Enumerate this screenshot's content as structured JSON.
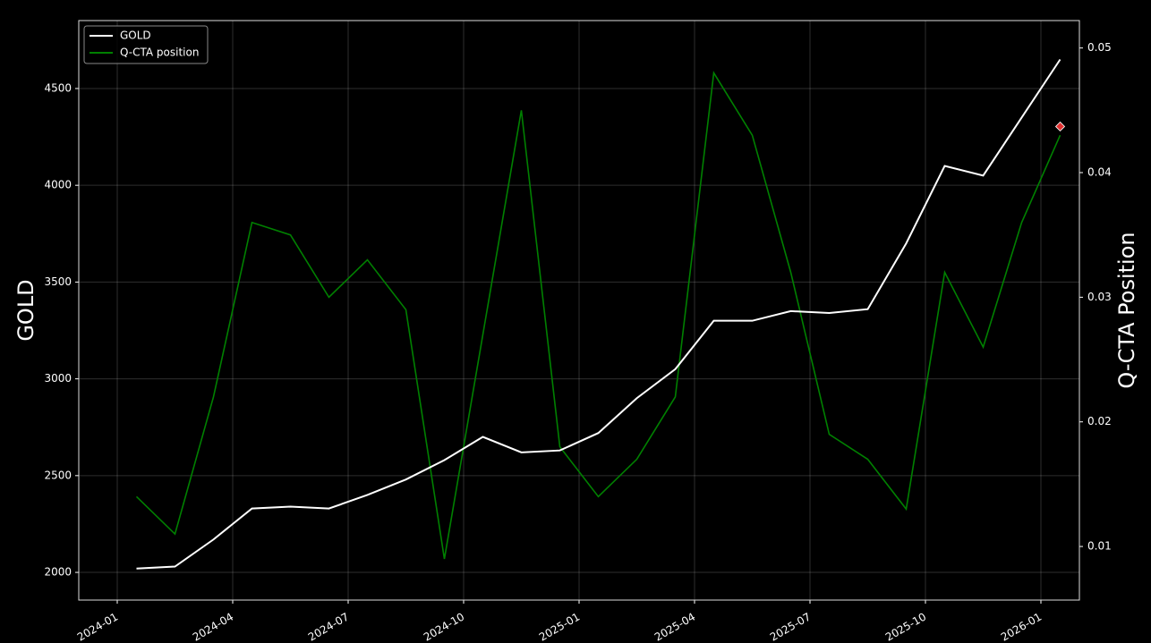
{
  "chart_data": {
    "type": "line",
    "x": [
      "2024-01",
      "2024-02",
      "2024-03",
      "2024-04",
      "2024-05",
      "2024-06",
      "2024-07",
      "2024-08",
      "2024-09",
      "2024-10",
      "2024-11",
      "2024-12",
      "2025-01",
      "2025-02",
      "2025-03",
      "2025-04",
      "2025-05",
      "2025-06",
      "2025-07",
      "2025-08",
      "2025-09",
      "2025-10",
      "2025-11",
      "2025-12",
      "2026-01"
    ],
    "series": [
      {
        "name": "GOLD",
        "color": "#ffffff",
        "axis": "y",
        "values": [
          2020,
          2030,
          2170,
          2330,
          2340,
          2330,
          2400,
          2480,
          2580,
          2700,
          2620,
          2630,
          2720,
          2900,
          3050,
          3300,
          3300,
          3350,
          3340,
          3360,
          3700,
          4100,
          4050,
          4350,
          4650
        ]
      },
      {
        "name": "Q-CTA position",
        "color": "#008000",
        "axis": "y2",
        "values": [
          0.014,
          0.011,
          0.022,
          0.036,
          0.035,
          0.03,
          0.033,
          0.029,
          0.009,
          0.027,
          0.045,
          0.018,
          0.014,
          0.017,
          0.022,
          0.048,
          0.043,
          0.032,
          0.019,
          0.017,
          0.013,
          0.032,
          0.026,
          0.036,
          0.043
        ]
      }
    ],
    "marker": {
      "x": "2026-01",
      "value": 0.0437,
      "color": "#e03030",
      "axis": "y2"
    },
    "ylabel": "GOLD",
    "y2label": "Q-CTA Position",
    "xlim": [
      "2023-12",
      "2026-02"
    ],
    "xticks": [
      "2024-01",
      "2024-04",
      "2024-07",
      "2024-10",
      "2025-01",
      "2025-04",
      "2025-07",
      "2025-10",
      "2026-01"
    ],
    "ylim": [
      1857,
      4851
    ],
    "yticks": [
      2000,
      2500,
      3000,
      3500,
      4000,
      4500
    ],
    "y2lim": [
      0.0057,
      0.0522
    ],
    "y2ticks": [
      0.01,
      0.02,
      0.03,
      0.04,
      0.05
    ],
    "grid": true,
    "legend": "upper-left"
  }
}
